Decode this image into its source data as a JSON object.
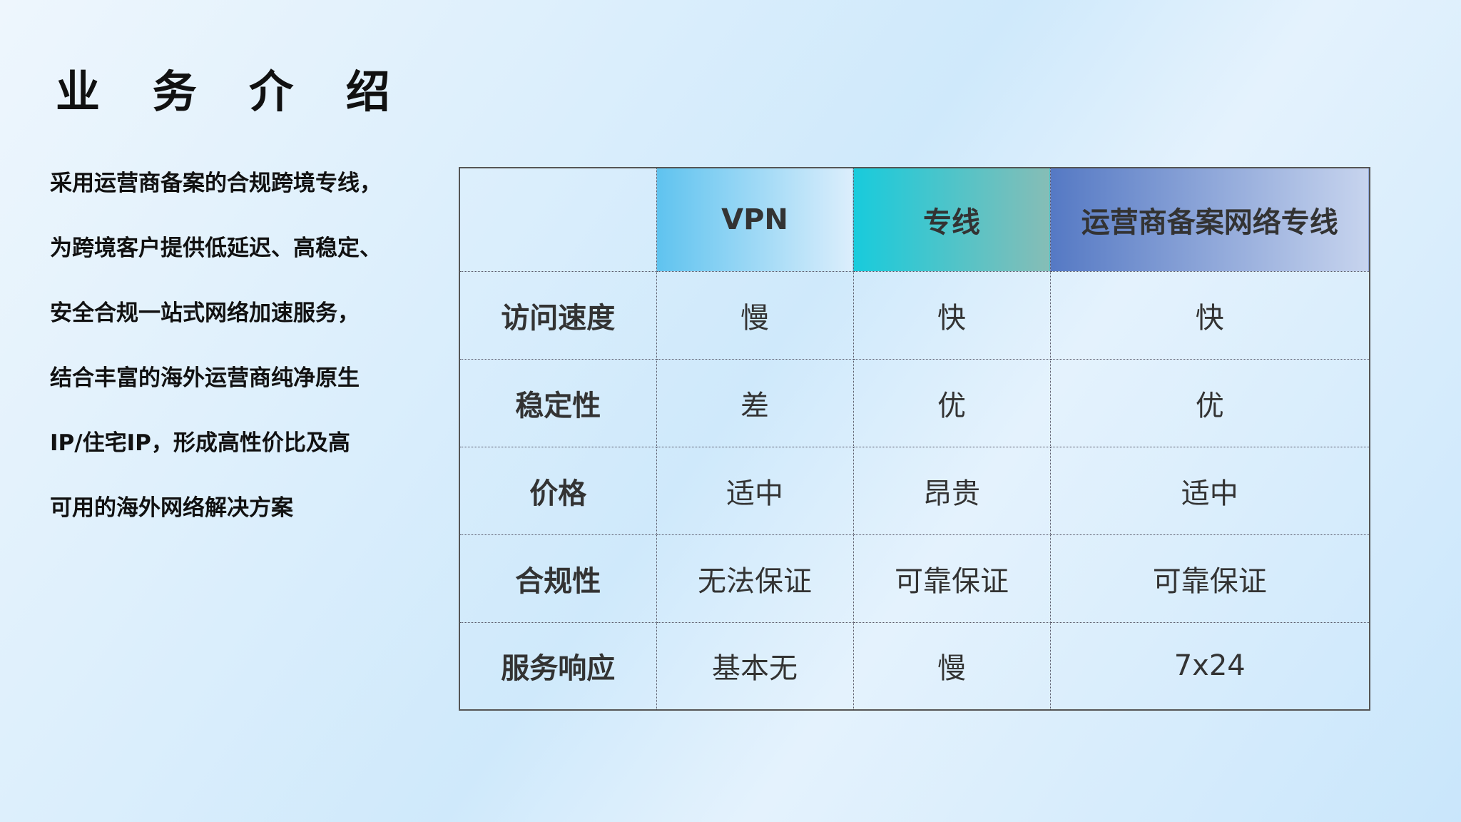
{
  "title": "业 务 介 绍",
  "description": [
    "采用运营商备案的合规跨境专线，",
    "为跨境客户提供低延迟、高稳定、",
    "安全合规一站式网络加速服务，",
    "结合丰富的海外运营商纯净原生",
    "IP/住宅IP，形成高性价比及高",
    "可用的海外网络解决方案"
  ],
  "table": {
    "headers": [
      "",
      "VPN",
      "专线",
      "运营商备案网络专线"
    ],
    "header_colors": [
      "#5fc3ef",
      "#18cbdc",
      "#5579c4"
    ],
    "rows": [
      [
        "访问速度",
        "慢",
        "快",
        "快"
      ],
      [
        "稳定性",
        "差",
        "优",
        "优"
      ],
      [
        "价格",
        "适中",
        "昂贵",
        "适中"
      ],
      [
        "合规性",
        "无法保证",
        "可靠保证",
        "可靠保证"
      ],
      [
        "服务响应",
        "基本无",
        "慢",
        "7x24"
      ]
    ]
  }
}
